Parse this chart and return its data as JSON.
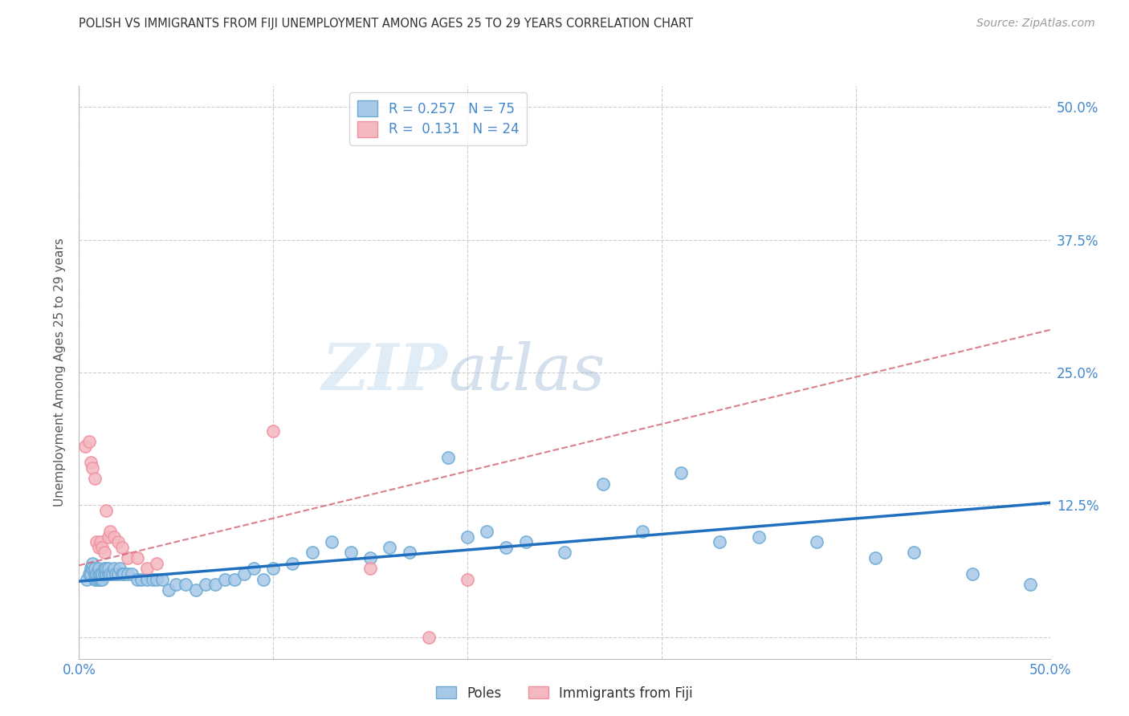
{
  "title": "POLISH VS IMMIGRANTS FROM FIJI UNEMPLOYMENT AMONG AGES 25 TO 29 YEARS CORRELATION CHART",
  "source": "Source: ZipAtlas.com",
  "ylabel": "Unemployment Among Ages 25 to 29 years",
  "xlim": [
    0.0,
    0.5
  ],
  "ylim": [
    -0.02,
    0.52
  ],
  "xtick_vals": [
    0.0,
    0.1,
    0.2,
    0.3,
    0.4,
    0.5
  ],
  "ytick_vals": [
    0.0,
    0.125,
    0.25,
    0.375,
    0.5
  ],
  "xticklabels": [
    "0.0%",
    "",
    "",
    "",
    "",
    "50.0%"
  ],
  "yticklabels_right": [
    "",
    "12.5%",
    "25.0%",
    "37.5%",
    "50.0%"
  ],
  "legend_line1": "R = 0.257   N = 75",
  "legend_line2": "R =  0.131   N = 24",
  "poles_color": "#a8c8e8",
  "fiji_color": "#f4b8c0",
  "poles_edge_color": "#6aaad4",
  "fiji_edge_color": "#f090a0",
  "poles_line_color": "#1f6fbe",
  "fiji_line_color": "#d06070",
  "tick_label_color": "#4488cc",
  "watermark_zip": "ZIP",
  "watermark_atlas": "atlas",
  "poles_x": [
    0.004,
    0.005,
    0.006,
    0.006,
    0.007,
    0.007,
    0.008,
    0.008,
    0.008,
    0.009,
    0.009,
    0.01,
    0.01,
    0.01,
    0.011,
    0.011,
    0.012,
    0.012,
    0.013,
    0.013,
    0.014,
    0.014,
    0.015,
    0.015,
    0.016,
    0.017,
    0.018,
    0.019,
    0.02,
    0.021,
    0.022,
    0.023,
    0.025,
    0.027,
    0.03,
    0.032,
    0.035,
    0.038,
    0.04,
    0.043,
    0.046,
    0.05,
    0.055,
    0.06,
    0.065,
    0.07,
    0.075,
    0.08,
    0.085,
    0.09,
    0.095,
    0.1,
    0.11,
    0.12,
    0.13,
    0.14,
    0.15,
    0.16,
    0.17,
    0.19,
    0.2,
    0.21,
    0.22,
    0.23,
    0.25,
    0.27,
    0.29,
    0.31,
    0.33,
    0.35,
    0.38,
    0.41,
    0.43,
    0.46,
    0.49
  ],
  "poles_y": [
    0.055,
    0.06,
    0.065,
    0.06,
    0.065,
    0.07,
    0.055,
    0.06,
    0.065,
    0.055,
    0.06,
    0.055,
    0.06,
    0.065,
    0.055,
    0.06,
    0.055,
    0.06,
    0.06,
    0.065,
    0.06,
    0.065,
    0.06,
    0.065,
    0.06,
    0.06,
    0.065,
    0.06,
    0.06,
    0.065,
    0.06,
    0.06,
    0.06,
    0.06,
    0.055,
    0.055,
    0.055,
    0.055,
    0.055,
    0.055,
    0.045,
    0.05,
    0.05,
    0.045,
    0.05,
    0.05,
    0.055,
    0.055,
    0.06,
    0.065,
    0.055,
    0.065,
    0.07,
    0.08,
    0.09,
    0.08,
    0.075,
    0.085,
    0.08,
    0.17,
    0.095,
    0.1,
    0.085,
    0.09,
    0.08,
    0.145,
    0.1,
    0.155,
    0.09,
    0.095,
    0.09,
    0.075,
    0.08,
    0.06,
    0.05
  ],
  "fiji_x": [
    0.003,
    0.005,
    0.006,
    0.007,
    0.008,
    0.009,
    0.01,
    0.011,
    0.012,
    0.013,
    0.014,
    0.015,
    0.016,
    0.018,
    0.02,
    0.022,
    0.025,
    0.03,
    0.035,
    0.04,
    0.1,
    0.15,
    0.18,
    0.2
  ],
  "fiji_y": [
    0.18,
    0.185,
    0.165,
    0.16,
    0.15,
    0.09,
    0.085,
    0.09,
    0.085,
    0.08,
    0.12,
    0.095,
    0.1,
    0.095,
    0.09,
    0.085,
    0.075,
    0.075,
    0.065,
    0.07,
    0.195,
    0.065,
    0.0,
    0.055
  ],
  "poles_trend_x": [
    0.0,
    0.5
  ],
  "poles_trend_y": [
    0.053,
    0.127
  ],
  "fiji_trend_x": [
    0.0,
    0.5
  ],
  "fiji_trend_y": [
    0.068,
    0.29
  ]
}
